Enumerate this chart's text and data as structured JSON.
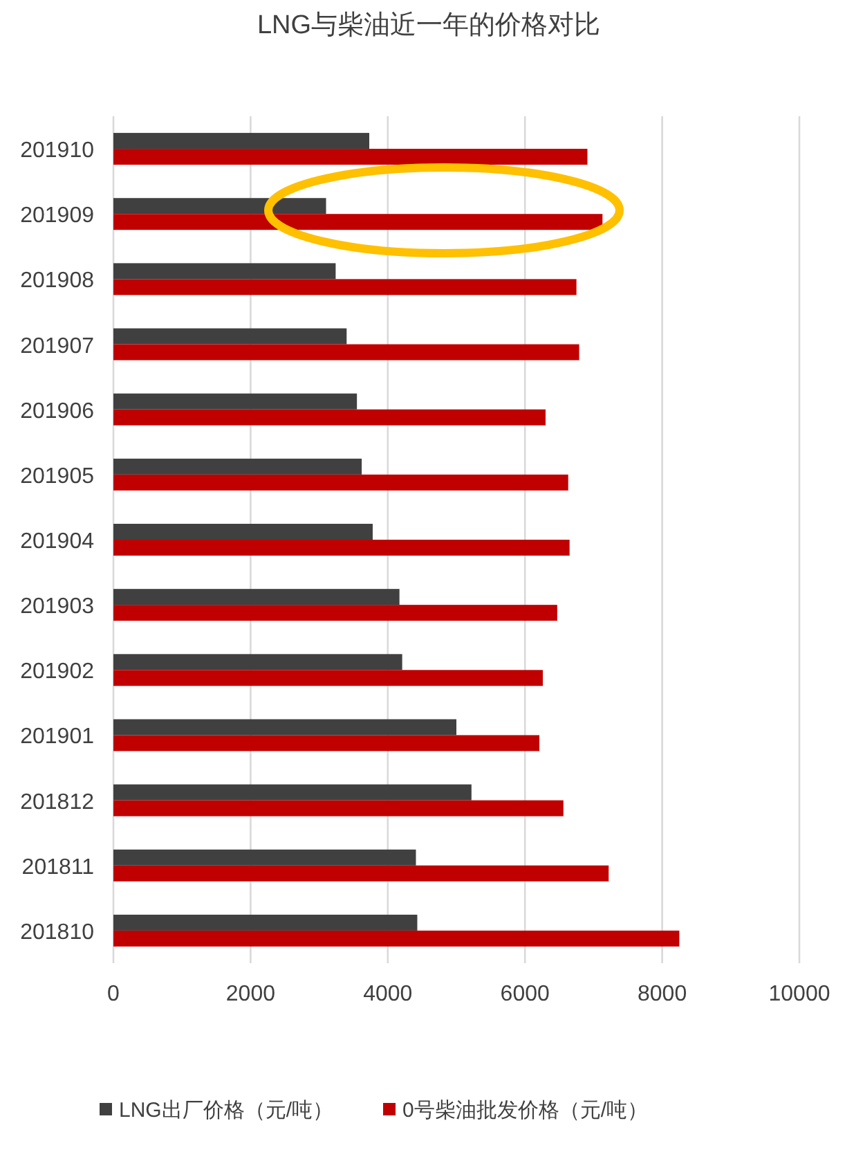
{
  "chart_data": {
    "type": "bar",
    "orientation": "horizontal",
    "title": "LNG与柴油近一年的价格对比",
    "categories": [
      "201910",
      "201909",
      "201908",
      "201907",
      "201906",
      "201905",
      "201904",
      "201903",
      "201902",
      "201901",
      "201812",
      "201811",
      "201810"
    ],
    "series": [
      {
        "name": "LNG出厂价格（元/吨）",
        "color": "#404040",
        "values": [
          3730,
          3100,
          3240,
          3400,
          3550,
          3620,
          3780,
          4170,
          4210,
          5000,
          5220,
          4410,
          4430
        ]
      },
      {
        "name": "0号柴油批发价格（元/吨）",
        "color": "#c00000",
        "values": [
          6910,
          7130,
          6750,
          6790,
          6300,
          6630,
          6650,
          6470,
          6260,
          6210,
          6560,
          7220,
          8250
        ]
      }
    ],
    "xlim": [
      0,
      10000
    ],
    "xticks": [
      0,
      2000,
      4000,
      6000,
      8000,
      10000
    ],
    "grid": "x",
    "legend": "bottom"
  }
}
